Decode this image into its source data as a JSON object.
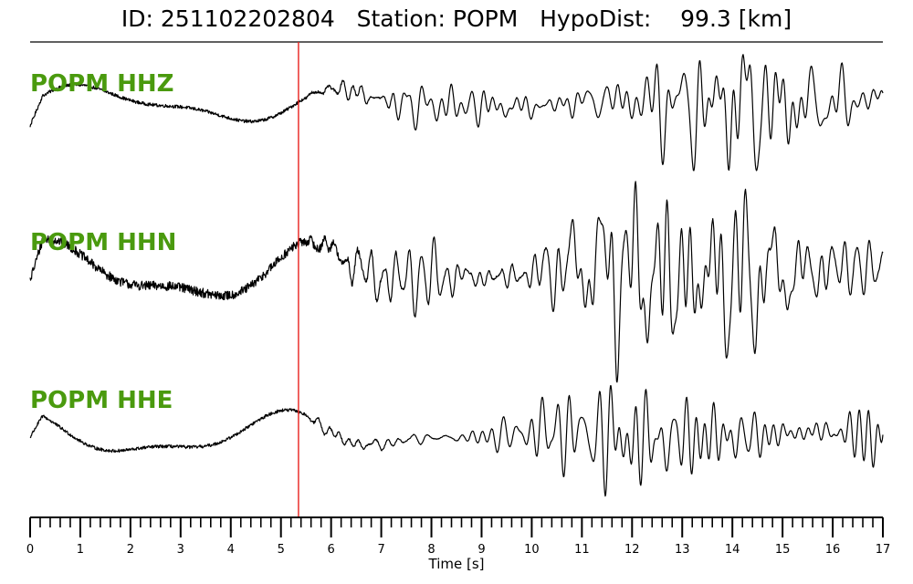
{
  "title": {
    "id_label": "ID:",
    "id_value": "251102202804",
    "station_label": "Station:",
    "station_value": "POPM",
    "hypodist_label": "HypoDist:",
    "hypodist_value": "99.3",
    "hypodist_unit": "[km]"
  },
  "chart_data": {
    "type": "line",
    "xlabel": "Time [s]",
    "xlim": [
      0,
      17
    ],
    "x_major_ticks": [
      "0",
      "1",
      "2",
      "3",
      "4",
      "5",
      "6",
      "7",
      "8",
      "9",
      "10",
      "11",
      "12",
      "13",
      "14",
      "15",
      "16",
      "17"
    ],
    "x_minor_tick_step": 0.2,
    "pick_marker": {
      "time": 5.35,
      "color": "#e8211d"
    },
    "trace_color": "#000000",
    "label_color": "#4a9a0e",
    "series": [
      {
        "name": "POPM HHZ",
        "pre_noise": 0.12,
        "coda_peak": 0.9,
        "onset": 5.35
      },
      {
        "name": "POPM HHN",
        "pre_noise": 0.22,
        "coda_peak": 1.0,
        "onset": 5.35
      },
      {
        "name": "POPM HHE",
        "pre_noise": 0.1,
        "coda_peak": 0.85,
        "onset": 5.35
      }
    ]
  }
}
